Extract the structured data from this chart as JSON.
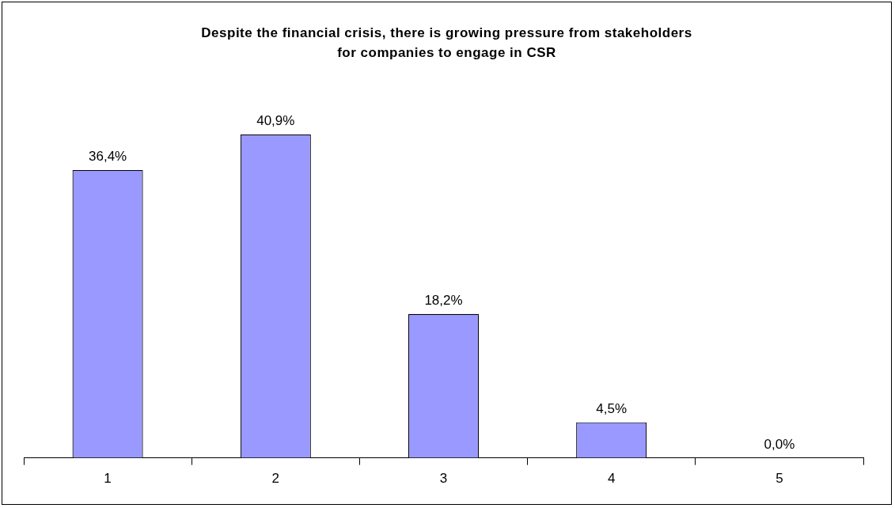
{
  "chart_data": {
    "type": "bar",
    "title": "Despite the financial crisis, there is growing pressure from stakeholders for companies to engage in CSR",
    "categories": [
      "1",
      "2",
      "3",
      "4",
      "5"
    ],
    "values": [
      36.4,
      40.9,
      18.2,
      4.5,
      0.0
    ],
    "value_labels": [
      "36,4%",
      "40,9%",
      "18,2%",
      "4,5%",
      "0,0%"
    ],
    "color": "#9999ff",
    "grid": false,
    "legend": false
  }
}
